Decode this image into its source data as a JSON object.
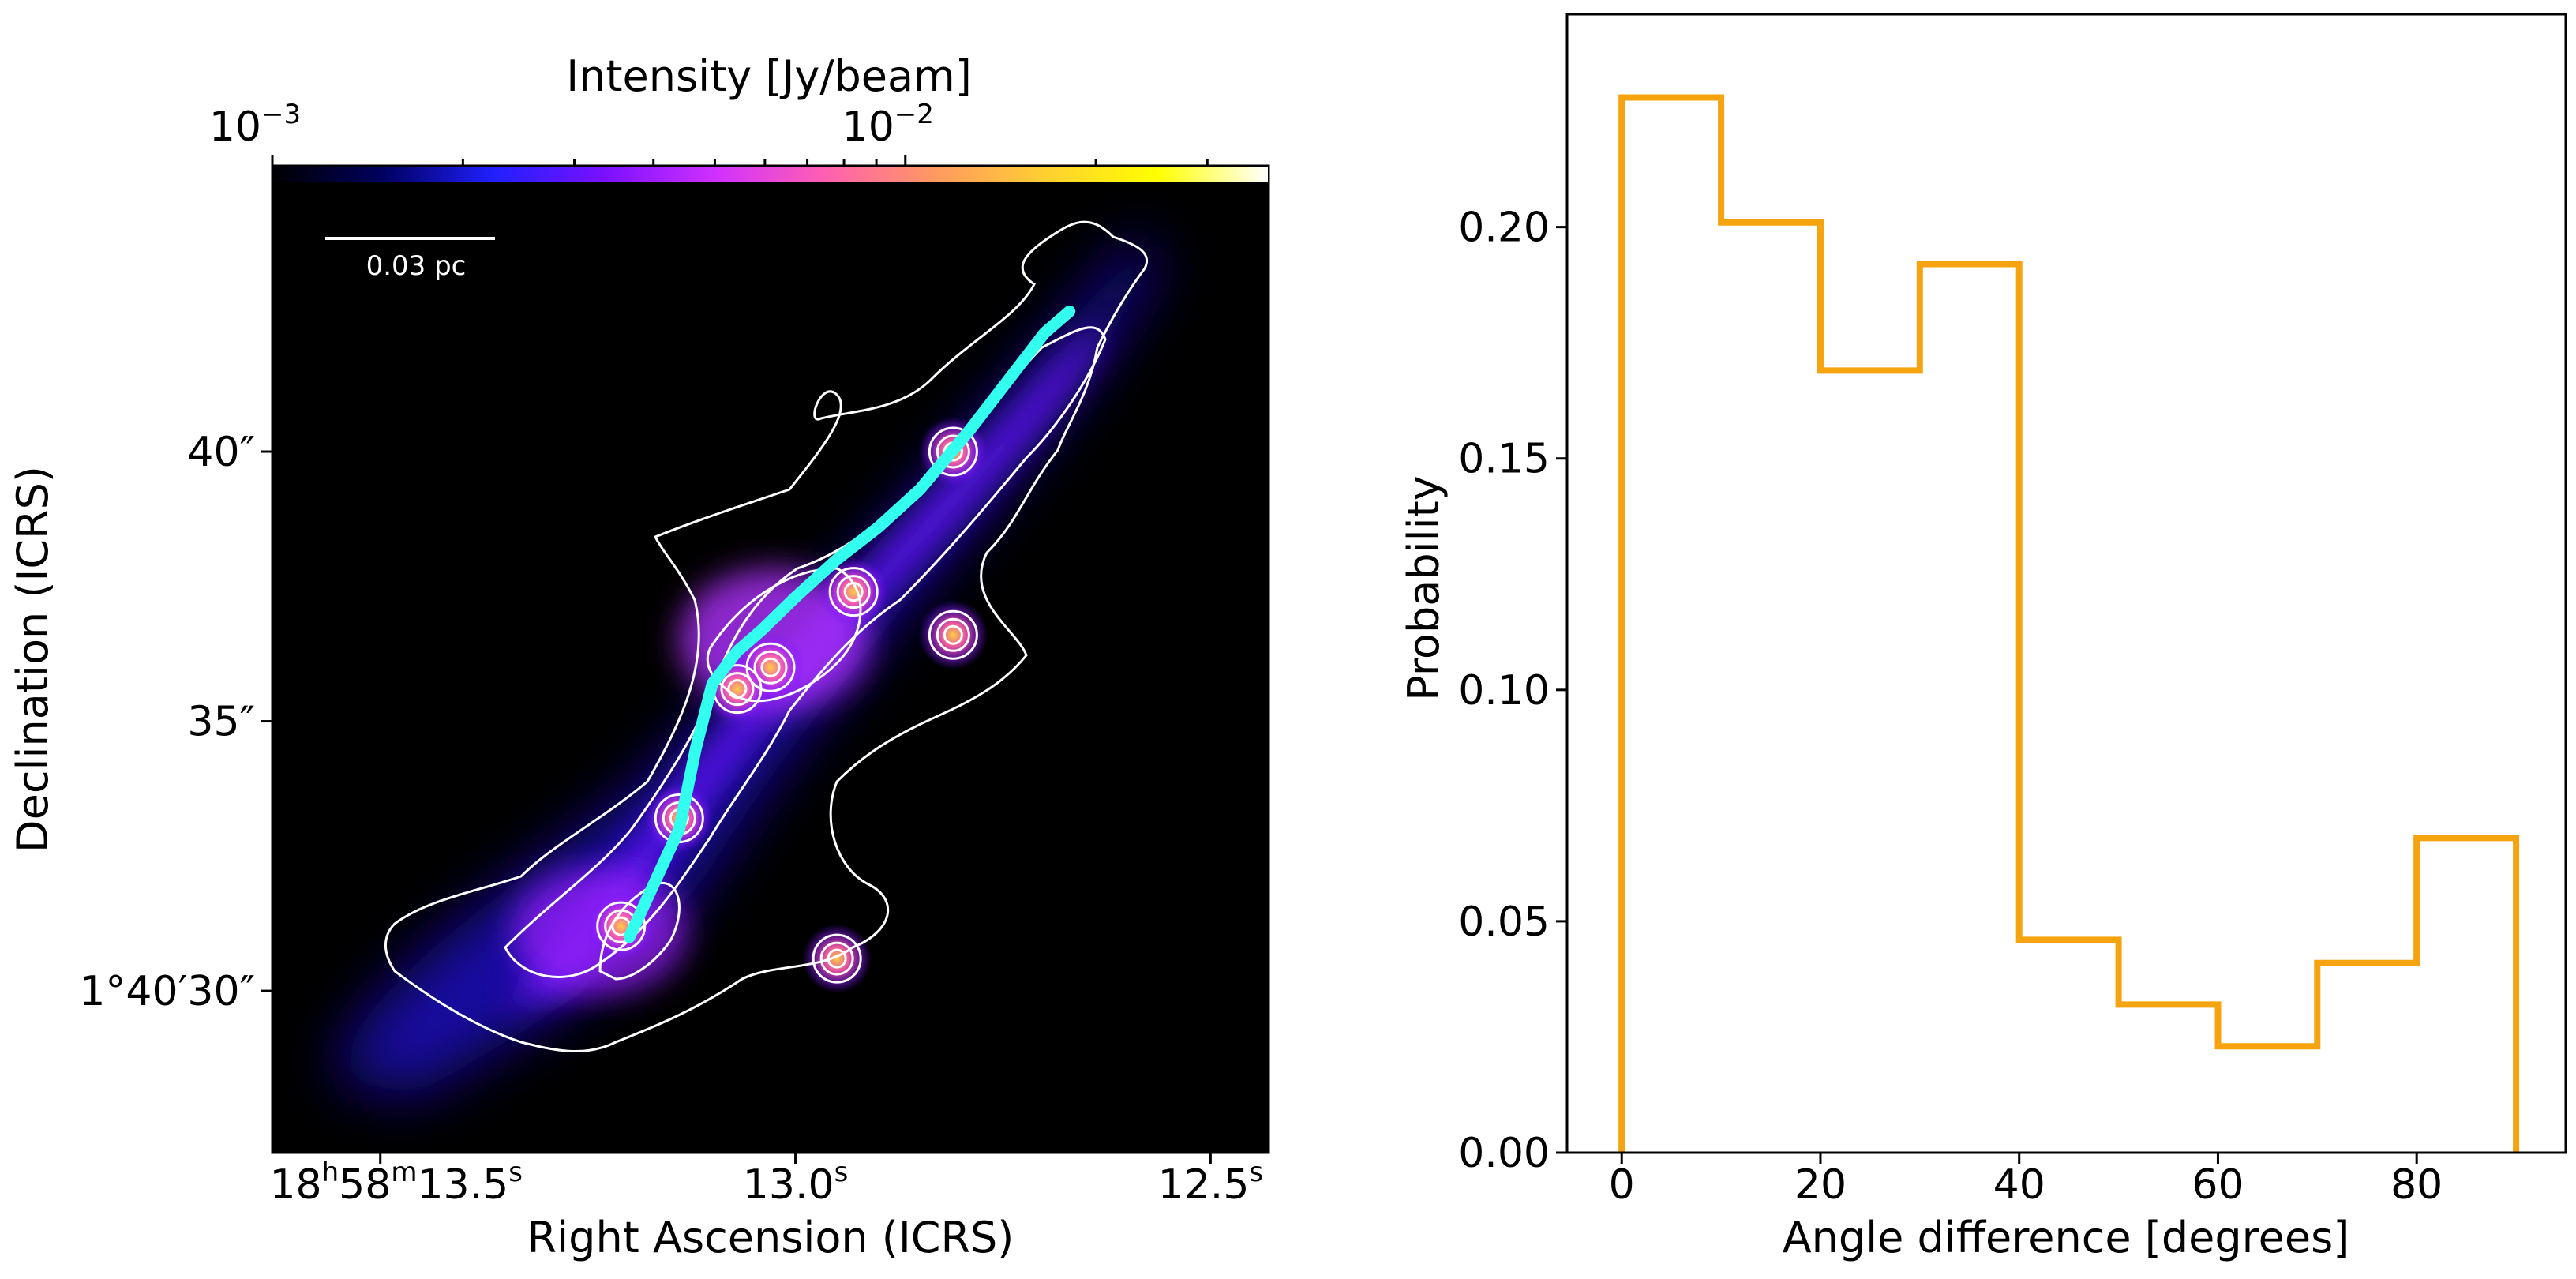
{
  "chart_data": [
    {
      "type": "image",
      "xlabel": "Right Ascension (ICRS)",
      "ylabel": "Declination (ICRS)",
      "x_ticks": [
        {
          "value": 13.5,
          "h": "18",
          "m": "58",
          "s": "13.5"
        },
        {
          "value": 13.0,
          "h": "",
          "m": "",
          "s": "13.0"
        },
        {
          "value": 12.5,
          "h": "",
          "m": "",
          "s": "12.5"
        }
      ],
      "y_ticks": [
        {
          "value": 40,
          "label": "40″"
        },
        {
          "value": 35,
          "label": "35″"
        },
        {
          "value": 30,
          "label": "1°40′30″"
        }
      ],
      "xlim": [
        13.63,
        12.43
      ],
      "ylim": [
        27.0,
        45.3
      ],
      "colorbar": {
        "label": "Intensity [Jy/beam]",
        "scale": "log",
        "range": [
          0.001,
          0.0375
        ],
        "ticks": [
          {
            "value": 0.001,
            "base": "10",
            "exp": "−3"
          },
          {
            "value": 0.01,
            "base": "10",
            "exp": "−2"
          }
        ],
        "colors": [
          "#000000",
          "#000060",
          "#2020ff",
          "#7a10ff",
          "#d030ff",
          "#ff60b0",
          "#ff9a60",
          "#ffd030",
          "#ffff00",
          "#ffffff"
        ]
      },
      "scalebar": {
        "label": "0.03 pc"
      },
      "spine": {
        "color": "#33ffee",
        "ra": [
          13.2,
          13.17,
          13.14,
          13.12,
          13.1,
          13.07,
          13.04,
          13.0,
          12.95,
          12.9,
          12.85,
          12.79,
          12.74,
          12.7,
          12.67
        ],
        "dec": [
          31.0,
          32.0,
          33.0,
          34.5,
          35.7,
          36.3,
          36.7,
          37.3,
          38.0,
          38.6,
          39.3,
          40.4,
          41.4,
          42.2,
          42.6
        ]
      },
      "cores": [
        {
          "ra": 12.81,
          "dec": 40.0
        },
        {
          "ra": 12.93,
          "dec": 37.4
        },
        {
          "ra": 13.03,
          "dec": 36.0
        },
        {
          "ra": 13.07,
          "dec": 35.6
        },
        {
          "ra": 12.81,
          "dec": 36.6
        },
        {
          "ra": 13.14,
          "dec": 33.2
        },
        {
          "ra": 13.21,
          "dec": 31.2
        },
        {
          "ra": 12.95,
          "dec": 30.6
        }
      ]
    },
    {
      "type": "histogram",
      "xlabel": "Angle difference [degrees]",
      "ylabel": "Probability",
      "bin_edges": [
        0,
        10,
        20,
        30,
        40,
        50,
        60,
        70,
        80,
        90
      ],
      "values": [
        0.228,
        0.201,
        0.169,
        0.192,
        0.046,
        0.032,
        0.023,
        0.041,
        0.068
      ],
      "xlim": [
        -5.5,
        95
      ],
      "ylim": [
        0,
        0.246
      ],
      "x_ticks": [
        0,
        20,
        40,
        60,
        80
      ],
      "y_ticks": [
        0.0,
        0.05,
        0.1,
        0.15,
        0.2
      ],
      "y_tick_labels": [
        "0.00",
        "0.05",
        "0.10",
        "0.15",
        "0.20"
      ],
      "color": "#f5a30f",
      "grid": false
    }
  ]
}
